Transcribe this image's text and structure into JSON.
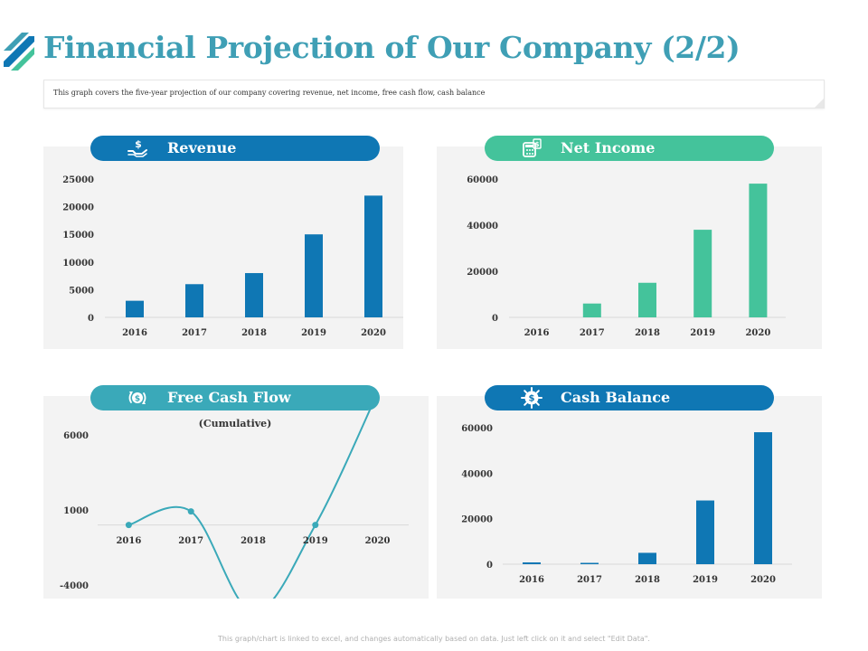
{
  "title": "Financial Projection of Our Company (2/2)",
  "subtitle": "This graph covers the five-year projection of our company covering revenue, net income, free cash flow, cash balance",
  "footer": "This graph/chart is linked to excel, and changes automatically based on data. Just left click on it and select \"Edit Data\".",
  "colors": {
    "title": "#3f9fb5",
    "revenue": "#0f77b4",
    "net_income": "#44c39b",
    "free_cash_flow": "#3aa9b9",
    "cash_balance": "#0f77b4"
  },
  "panels": {
    "revenue": {
      "label": "Revenue",
      "icon": "money-hand-icon"
    },
    "net_income": {
      "label": "Net Income",
      "icon": "calculator-money-icon"
    },
    "free_cash_flow": {
      "label": "Free Cash Flow",
      "icon": "dollar-cycle-icon"
    },
    "cash_balance": {
      "label": "Cash Balance",
      "icon": "dollar-gear-icon"
    }
  },
  "chart_data": [
    {
      "id": "revenue",
      "type": "bar",
      "categories": [
        "2016",
        "2017",
        "2018",
        "2019",
        "2020"
      ],
      "values": [
        3000,
        6000,
        8000,
        15000,
        22000
      ],
      "ylim": [
        0,
        25000
      ],
      "yticks": [
        0,
        5000,
        10000,
        15000,
        20000,
        25000
      ],
      "grid": false,
      "color": "#0f77b4"
    },
    {
      "id": "net_income",
      "type": "bar",
      "categories": [
        "2016",
        "2017",
        "2018",
        "2019",
        "2020"
      ],
      "values": [
        0,
        6000,
        15000,
        38000,
        58000
      ],
      "ylim": [
        0,
        60000
      ],
      "yticks": [
        0,
        20000,
        40000,
        60000
      ],
      "grid": false,
      "color": "#44c39b"
    },
    {
      "id": "free_cash_flow",
      "type": "line",
      "subtitle": "(Cumulative)",
      "categories": [
        "2016",
        "2017",
        "2018",
        "2019",
        "2020"
      ],
      "values": [
        0,
        900,
        -5800,
        0,
        8800
      ],
      "ylim": [
        -4000,
        6000
      ],
      "yticks": [
        -4000,
        1000,
        6000
      ],
      "grid": false,
      "smooth": true,
      "color": "#3aa9b9"
    },
    {
      "id": "cash_balance",
      "type": "bar",
      "categories": [
        "2016",
        "2017",
        "2018",
        "2019",
        "2020"
      ],
      "values": [
        800,
        500,
        5000,
        28000,
        58000
      ],
      "ylim": [
        0,
        60000
      ],
      "yticks": [
        0,
        20000,
        40000,
        60000
      ],
      "grid": false,
      "color": "#0f77b4"
    }
  ]
}
